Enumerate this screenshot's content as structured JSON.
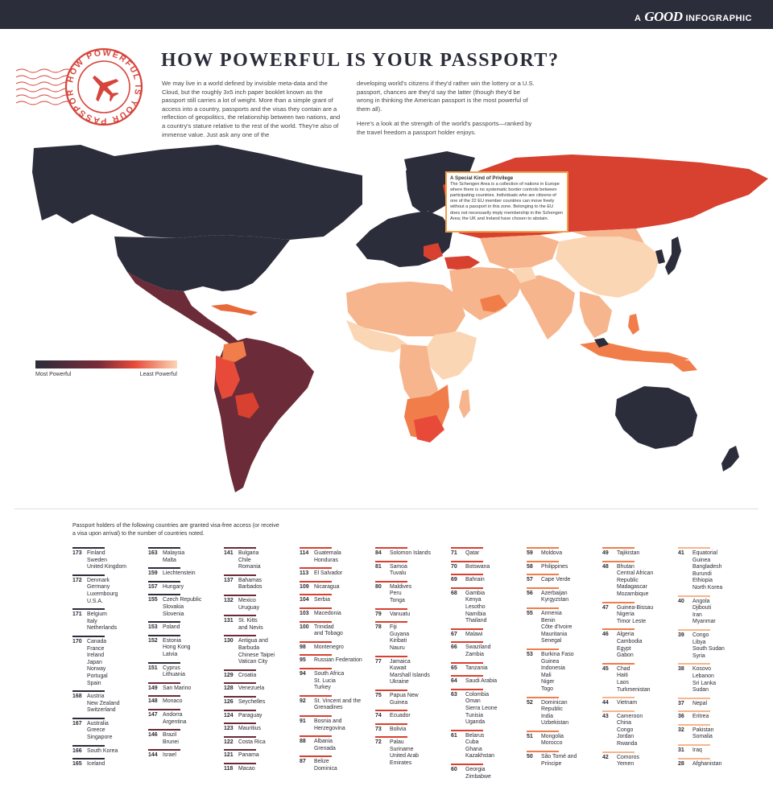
{
  "brand": {
    "prefix": "A",
    "name": "GOOD",
    "suffix": "INFOGRAPHIC"
  },
  "stamp": {
    "ring_text": "HOW POWERFUL IS YOUR PASSPORT?",
    "color": "#d6453c"
  },
  "title": "HOW POWERFUL IS YOUR PASSPORT?",
  "intro": {
    "left": "We may live in a world defined by invisible meta-data and the Cloud, but the roughly 3x5 inch paper booklet known as the passport still carries a lot of weight. More than a simple grant of access into a country, passports and the visas they contain are a reflection of geopolitics, the relationship between two nations, and a country's stature relative to the rest of the world. They're also of immense value. Just ask any one of the",
    "right_1": "developing world's citizens if they'd rather win the lottery or a U.S. passport, chances are they'd say the latter (though they'd be wrong in thinking the American passport is the most powerful of them all).",
    "right_2": "Here's a look at the strength of the world's passports—ranked by the travel freedom a passport holder enjoys."
  },
  "callout": {
    "title": "A Special Kind of Privilege",
    "body": "The Schengen Area is a collection of nations in Europe where there is no systematic border controls between participating countries. Individuals who are citizens of one of the 22 EU member countries can move freely without a passport in this zone. Belonging to the EU does not necessarily imply membership in the Schengen Area; the UK and Ireland have chosen to abstain."
  },
  "legend": {
    "most": "Most Powerful",
    "least": "Least Powerful"
  },
  "colors": {
    "dark": "#2c2d3a",
    "maroon": "#6b2b38",
    "red": "#d8402f",
    "orange": "#f07d4a",
    "peach": "#f6b58c",
    "light": "#fbd6b4"
  },
  "note": "Passport holders of the following countries are granted visa-free access (or receive a visa upon arrival) to the number of countries noted.",
  "rankings": [
    [
      {
        "rank": "173",
        "countries": [
          "Finland",
          "Sweden",
          "United Kingdom"
        ]
      },
      {
        "rank": "172",
        "countries": [
          "Denmark",
          "Germany",
          "Luxembourg",
          "U.S.A."
        ]
      },
      {
        "rank": "171",
        "countries": [
          "Belgium",
          "Italy",
          "Netherlands"
        ]
      },
      {
        "rank": "170",
        "countries": [
          "Canada",
          "France",
          "Ireland",
          "Japan",
          "Norway",
          "Portugal",
          "Spain"
        ]
      },
      {
        "rank": "168",
        "countries": [
          "Austria",
          "New Zealand",
          "Switzerland"
        ]
      },
      {
        "rank": "167",
        "countries": [
          "Australia",
          "Greece",
          "Singapore"
        ]
      },
      {
        "rank": "166",
        "countries": [
          "South Korea"
        ]
      },
      {
        "rank": "165",
        "countries": [
          "Iceland"
        ]
      }
    ],
    [
      {
        "rank": "163",
        "countries": [
          "Malaysia",
          "Malta"
        ]
      },
      {
        "rank": "159",
        "countries": [
          "Liechtenstein"
        ]
      },
      {
        "rank": "157",
        "countries": [
          "Hungary"
        ]
      },
      {
        "rank": "155",
        "countries": [
          "Czech Republic",
          "Slovakia",
          "Slovenia"
        ]
      },
      {
        "rank": "153",
        "countries": [
          "Poland"
        ]
      },
      {
        "rank": "152",
        "countries": [
          "Estonia",
          "Hong Kong",
          "Latvia"
        ]
      },
      {
        "rank": "151",
        "countries": [
          "Cyprus",
          "Lithuania"
        ]
      },
      {
        "rank": "149",
        "countries": [
          "San Marino"
        ]
      },
      {
        "rank": "148",
        "countries": [
          "Monaco"
        ]
      },
      {
        "rank": "147",
        "countries": [
          "Andorra",
          "Argentina"
        ]
      },
      {
        "rank": "146",
        "countries": [
          "Brazil",
          "Brunei"
        ]
      },
      {
        "rank": "144",
        "countries": [
          "Israel"
        ]
      }
    ],
    [
      {
        "rank": "141",
        "countries": [
          "Bulgaria",
          "Chile",
          "Romania"
        ]
      },
      {
        "rank": "137",
        "countries": [
          "Bahamas",
          "Barbados"
        ]
      },
      {
        "rank": "132",
        "countries": [
          "Mexico",
          "Uruguay"
        ]
      },
      {
        "rank": "131",
        "countries": [
          "St. Kitts",
          "and Nevis"
        ]
      },
      {
        "rank": "130",
        "countries": [
          "Antigua and",
          "Barbuda",
          "Chinese Taipei",
          "Vatican City"
        ]
      },
      {
        "rank": "129",
        "countries": [
          "Croatia"
        ]
      },
      {
        "rank": "128",
        "countries": [
          "Venezuela"
        ]
      },
      {
        "rank": "126",
        "countries": [
          "Seychelles"
        ]
      },
      {
        "rank": "124",
        "countries": [
          "Paraguay"
        ]
      },
      {
        "rank": "123",
        "countries": [
          "Mauritius"
        ]
      },
      {
        "rank": "122",
        "countries": [
          "Costa Rica"
        ]
      },
      {
        "rank": "121",
        "countries": [
          "Panama"
        ]
      },
      {
        "rank": "118",
        "countries": [
          "Macao"
        ]
      }
    ],
    [
      {
        "rank": "114",
        "countries": [
          "Guatemala",
          "Honduras"
        ]
      },
      {
        "rank": "113",
        "countries": [
          "El Salvador"
        ]
      },
      {
        "rank": "109",
        "countries": [
          "Nicaragua"
        ]
      },
      {
        "rank": "104",
        "countries": [
          "Serbia"
        ]
      },
      {
        "rank": "103",
        "countries": [
          "Macedonia"
        ]
      },
      {
        "rank": "100",
        "countries": [
          "Trinidad",
          "and Tobago"
        ]
      },
      {
        "rank": "98",
        "countries": [
          "Montenegro"
        ]
      },
      {
        "rank": "95",
        "countries": [
          "Russian Federation"
        ]
      },
      {
        "rank": "94",
        "countries": [
          "South Africa",
          "St. Lucia",
          "Turkey"
        ]
      },
      {
        "rank": "92",
        "countries": [
          "St. Vincent and the",
          "Grenadines"
        ]
      },
      {
        "rank": "91",
        "countries": [
          "Bosnia and",
          "Herzegovina"
        ]
      },
      {
        "rank": "88",
        "countries": [
          "Albania",
          "Grenada"
        ]
      },
      {
        "rank": "87",
        "countries": [
          "Belize",
          "Dominica"
        ]
      }
    ],
    [
      {
        "rank": "84",
        "countries": [
          "Solomon Islands"
        ]
      },
      {
        "rank": "81",
        "countries": [
          "Samoa",
          "Tuvalu"
        ]
      },
      {
        "rank": "80",
        "countries": [
          "Maldives",
          "Peru",
          "Tonga"
        ]
      },
      {
        "rank": "79",
        "countries": [
          "Vanuatu"
        ]
      },
      {
        "rank": "78",
        "countries": [
          "Fiji",
          "Guyana",
          "Kiribati",
          "Nauru"
        ]
      },
      {
        "rank": "77",
        "countries": [
          "Jamaica",
          "Kuwait",
          "Marshall Islands",
          "Ukraine"
        ]
      },
      {
        "rank": "75",
        "countries": [
          "Papua New",
          "Guinea"
        ]
      },
      {
        "rank": "74",
        "countries": [
          "Ecuador"
        ]
      },
      {
        "rank": "73",
        "countries": [
          "Bolivia"
        ]
      },
      {
        "rank": "72",
        "countries": [
          "Palau",
          "Suriname",
          "United Arab",
          "Emirates"
        ]
      }
    ],
    [
      {
        "rank": "71",
        "countries": [
          "Qatar"
        ]
      },
      {
        "rank": "70",
        "countries": [
          "Botswana"
        ]
      },
      {
        "rank": "69",
        "countries": [
          "Bahrain"
        ]
      },
      {
        "rank": "68",
        "countries": [
          "Gambia",
          "Kenya",
          "Lesotho",
          "Namibia",
          "Thailand"
        ]
      },
      {
        "rank": "67",
        "countries": [
          "Malawi"
        ]
      },
      {
        "rank": "66",
        "countries": [
          "Swaziland",
          "Zambia"
        ]
      },
      {
        "rank": "65",
        "countries": [
          "Tanzania"
        ]
      },
      {
        "rank": "64",
        "countries": [
          "Saudi Arabia"
        ]
      },
      {
        "rank": "63",
        "countries": [
          "Colombia",
          "Oman",
          "Sierra Leone",
          "Tunisia",
          "Uganda"
        ]
      },
      {
        "rank": "61",
        "countries": [
          "Belarus",
          "Cuba",
          "Ghana",
          "Kazakhstan"
        ]
      },
      {
        "rank": "60",
        "countries": [
          "Georgia",
          "Zimbabwe"
        ]
      }
    ],
    [
      {
        "rank": "59",
        "countries": [
          "Moldova"
        ]
      },
      {
        "rank": "58",
        "countries": [
          "Philippines"
        ]
      },
      {
        "rank": "57",
        "countries": [
          "Cape Verde"
        ]
      },
      {
        "rank": "56",
        "countries": [
          "Azerbaijan",
          "Kyrgyzstan"
        ]
      },
      {
        "rank": "55",
        "countries": [
          "Armenia",
          "Benin",
          "Côte d'Ivoire",
          "Mauritania",
          "Senegal"
        ]
      },
      {
        "rank": "53",
        "countries": [
          "Burkina Faso",
          "Guinea",
          "Indonesia",
          "Mali",
          "Niger",
          "Togo"
        ]
      },
      {
        "rank": "52",
        "countries": [
          "Dominican",
          "Republic",
          "India",
          "Uzbekistan"
        ]
      },
      {
        "rank": "51",
        "countries": [
          "Mongolia",
          "Morocco"
        ]
      },
      {
        "rank": "50",
        "countries": [
          "São Tomé and",
          "Príncipe"
        ]
      }
    ],
    [
      {
        "rank": "49",
        "countries": [
          "Tajikistan"
        ]
      },
      {
        "rank": "48",
        "countries": [
          "Bhutan",
          "Central African",
          "Republic",
          "Madagascar",
          "Mozambique"
        ]
      },
      {
        "rank": "47",
        "countries": [
          "Guinea-Bissau",
          "Nigeria",
          "Timor Leste"
        ]
      },
      {
        "rank": "46",
        "countries": [
          "Algeria",
          "Cambodia",
          "Egypt",
          "Gabon"
        ]
      },
      {
        "rank": "45",
        "countries": [
          "Chad",
          "Haiti",
          "Laos",
          "Turkmenistan"
        ]
      },
      {
        "rank": "44",
        "countries": [
          "Vietnam"
        ]
      },
      {
        "rank": "43",
        "countries": [
          "Cameroon",
          "China",
          "Congo",
          "Jordan",
          "Rwanda"
        ]
      },
      {
        "rank": "42",
        "countries": [
          "Comoros",
          "Yemen"
        ]
      }
    ],
    [
      {
        "rank": "41",
        "countries": [
          "Equatorial",
          "Guinea",
          "Bangladesh",
          "Burundi",
          "Ethiopia",
          "North Korea"
        ]
      },
      {
        "rank": "40",
        "countries": [
          "Angola",
          "Djibouti",
          "Iran",
          "Myanmar"
        ]
      },
      {
        "rank": "39",
        "countries": [
          "Congo",
          "Libya",
          "South Sudan",
          "Syria"
        ]
      },
      {
        "rank": "38",
        "countries": [
          "Kosovo",
          "Lebanon",
          "Sri Lanka",
          "Sudan"
        ]
      },
      {
        "rank": "37",
        "countries": [
          "Nepal"
        ]
      },
      {
        "rank": "36",
        "countries": [
          "Eritrea"
        ]
      },
      {
        "rank": "32",
        "countries": [
          "Pakistan",
          "Somalia"
        ]
      },
      {
        "rank": "31",
        "countries": [
          "Iraq"
        ]
      },
      {
        "rank": "28",
        "countries": [
          "Afghanistan"
        ]
      }
    ]
  ]
}
